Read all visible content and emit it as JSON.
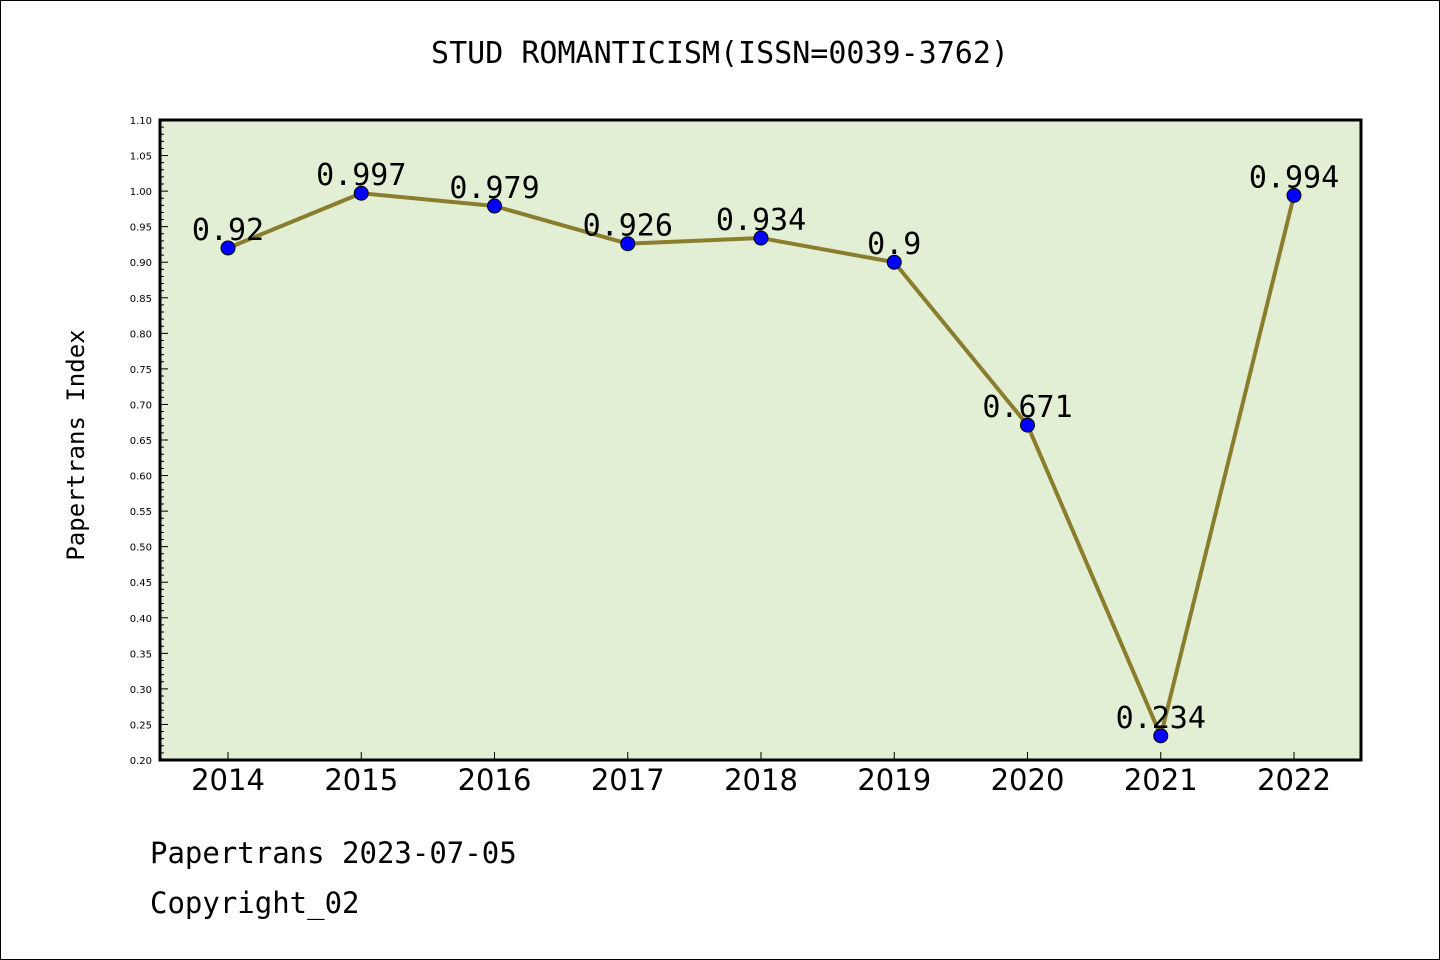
{
  "chart_data": {
    "type": "line",
    "title": "STUD ROMANTICISM(ISSN=0039-3762)",
    "xlabel": "",
    "ylabel": "Papertrans Index",
    "categories": [
      "2014",
      "2015",
      "2016",
      "2017",
      "2018",
      "2019",
      "2020",
      "2021",
      "2022"
    ],
    "series": [
      {
        "values": [
          0.92,
          0.997,
          0.979,
          0.926,
          0.934,
          0.9,
          0.671,
          0.234,
          0.994
        ],
        "labels": [
          "0.92",
          "0.997",
          "0.979",
          "0.926",
          "0.934",
          "0.9",
          "0.671",
          "0.234",
          "0.994"
        ]
      }
    ],
    "ylim": [
      0.2,
      1.1
    ],
    "yticks": [
      "0.20",
      "0.25",
      "0.30",
      "0.35",
      "0.40",
      "0.45",
      "0.50",
      "0.55",
      "0.60",
      "0.65",
      "0.70",
      "0.75",
      "0.80",
      "0.85",
      "0.90",
      "0.95",
      "1.00",
      "1.05",
      "1.10"
    ],
    "grid": false,
    "colors": {
      "plot_background": "#e2efd5",
      "line": "#8b7d2e",
      "marker": "#0000ff"
    }
  },
  "footer": {
    "date_line": "Papertrans 2023-07-05",
    "copyright": "Copyright_02"
  }
}
